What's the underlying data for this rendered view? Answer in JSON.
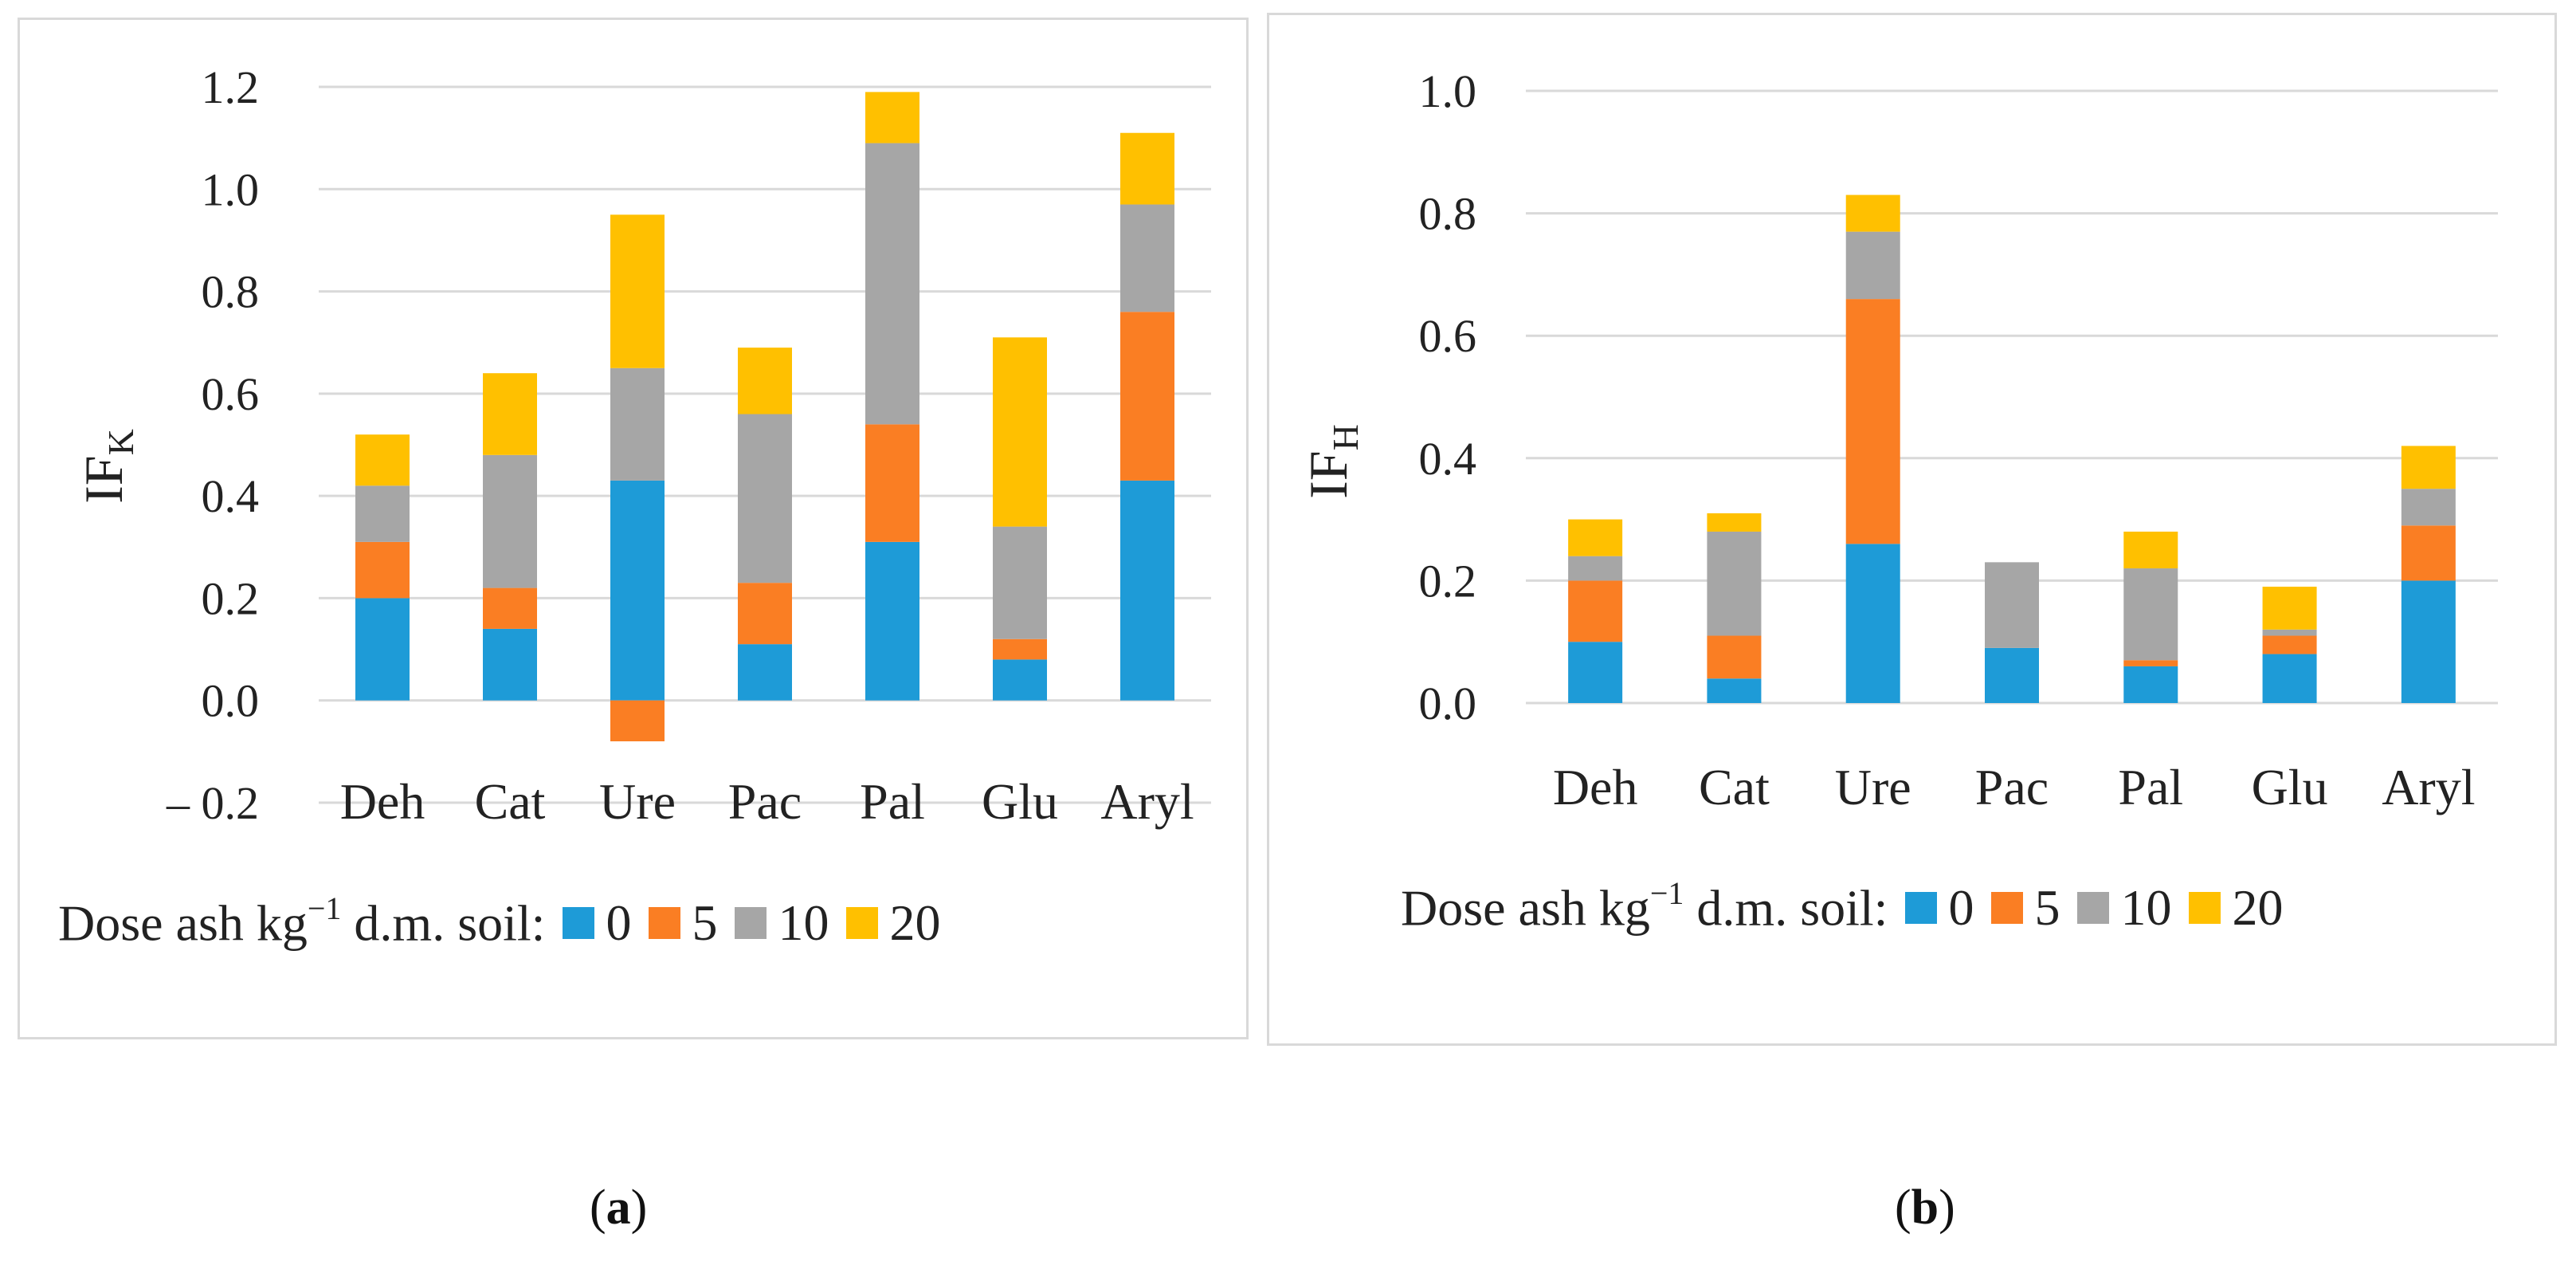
{
  "colors": {
    "dose0": "#1E9BD7",
    "dose5": "#FA7E23",
    "dose10": "#A6A6A6",
    "dose20": "#FFC000",
    "grid": "#d9d9d9"
  },
  "legend": {
    "prefix": "Dose ash kg",
    "sup": "−1",
    "suffix": " d.m. soil:",
    "items": [
      "0",
      "5",
      "10",
      "20"
    ]
  },
  "panel_labels": {
    "a": "a",
    "b": "b"
  },
  "chart_data": [
    {
      "type": "bar",
      "stacked": true,
      "ylabel": "IF",
      "ylabel_sub": "K",
      "ylim": [
        -0.2,
        1.2
      ],
      "yticks": [
        "– 0.2",
        "0.0",
        "0.2",
        "0.4",
        "0.6",
        "0.8",
        "1.0",
        "1.2"
      ],
      "ytick_values": [
        -0.2,
        0.0,
        0.2,
        0.4,
        0.6,
        0.8,
        1.0,
        1.2
      ],
      "grid": true,
      "legend_position": "bottom",
      "categories": [
        "Deh",
        "Cat",
        "Ure",
        "Pac",
        "Pal",
        "Glu",
        "Aryl"
      ],
      "series": [
        {
          "name": "0",
          "values": [
            0.2,
            0.14,
            0.43,
            0.11,
            0.31,
            0.08,
            0.43
          ]
        },
        {
          "name": "5",
          "values": [
            0.11,
            0.08,
            -0.08,
            0.12,
            0.23,
            0.04,
            0.33
          ]
        },
        {
          "name": "10",
          "values": [
            0.11,
            0.26,
            0.22,
            0.33,
            0.55,
            0.22,
            0.21
          ]
        },
        {
          "name": "20",
          "values": [
            0.1,
            0.16,
            0.3,
            0.13,
            0.1,
            0.37,
            0.14
          ]
        }
      ]
    },
    {
      "type": "bar",
      "stacked": true,
      "ylabel": "IF",
      "ylabel_sub": "H",
      "ylim": [
        0.0,
        1.0
      ],
      "yticks": [
        "0.0",
        "0.2",
        "0.4",
        "0.6",
        "0.8",
        "1.0"
      ],
      "ytick_values": [
        0.0,
        0.2,
        0.4,
        0.6,
        0.8,
        1.0
      ],
      "grid": true,
      "legend_position": "bottom",
      "categories": [
        "Deh",
        "Cat",
        "Ure",
        "Pac",
        "Pal",
        "Glu",
        "Aryl"
      ],
      "series": [
        {
          "name": "0",
          "values": [
            0.1,
            0.04,
            0.26,
            0.09,
            0.06,
            0.08,
            0.2
          ]
        },
        {
          "name": "5",
          "values": [
            0.1,
            0.07,
            0.4,
            0.0,
            0.01,
            0.03,
            0.09
          ]
        },
        {
          "name": "10",
          "values": [
            0.04,
            0.17,
            0.11,
            0.14,
            0.15,
            0.01,
            0.06
          ]
        },
        {
          "name": "20",
          "values": [
            0.06,
            0.03,
            0.06,
            0.0,
            0.06,
            0.07,
            0.07
          ]
        }
      ]
    }
  ]
}
